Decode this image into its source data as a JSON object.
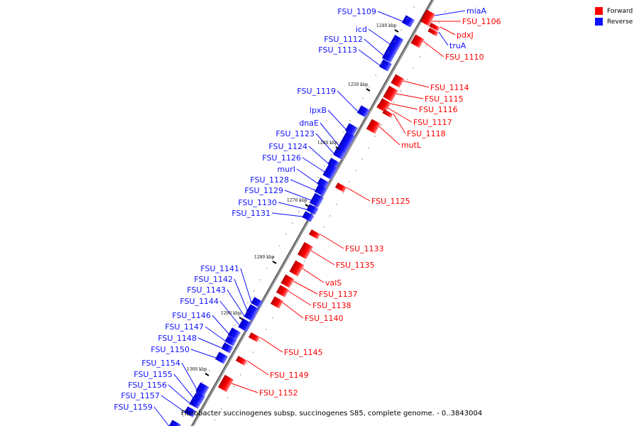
{
  "legend": {
    "forward_label": "Forward",
    "reverse_label": "Reverse",
    "forward_color": "#ff0000",
    "reverse_color": "#1010ff"
  },
  "caption": "Fibrobacter succinogenes subsp. succinogenes S85, complete genome. - 0..3843004",
  "scale_labels": [
    "1240 kbp",
    "1250 kbp",
    "1260 kbp",
    "1270 kbp",
    "1280 kbp",
    "1290 kbp",
    "1300 kbp"
  ],
  "reverse_genes": [
    "FSU_1109",
    "icd",
    "FSU_1112",
    "FSU_1113",
    "FSU_1119",
    "lpxB",
    "dnaE",
    "FSU_1123",
    "FSU_1124",
    "FSU_1126",
    "murI",
    "FSU_1128",
    "FSU_1129",
    "FSU_1130",
    "FSU_1131",
    "FSU_1141",
    "FSU_1142",
    "FSU_1143",
    "FSU_1144",
    "FSU_1146",
    "FSU_1147",
    "FSU_1148",
    "FSU_1150",
    "FSU_1154",
    "FSU_1155",
    "FSU_1156",
    "FSU_1157",
    "FSU_1159"
  ],
  "forward_genes": [
    "miaA",
    "FSU_1106",
    "pdxJ",
    "truA",
    "FSU_1110",
    "FSU_1114",
    "FSU_1115",
    "FSU_1116",
    "FSU_1117",
    "FSU_1118",
    "mutL",
    "FSU_1125",
    "FSU_1133",
    "FSU_1135",
    "valS",
    "FSU_1137",
    "FSU_1138",
    "FSU_1140",
    "FSU_1145",
    "FSU_1149",
    "FSU_1152"
  ]
}
